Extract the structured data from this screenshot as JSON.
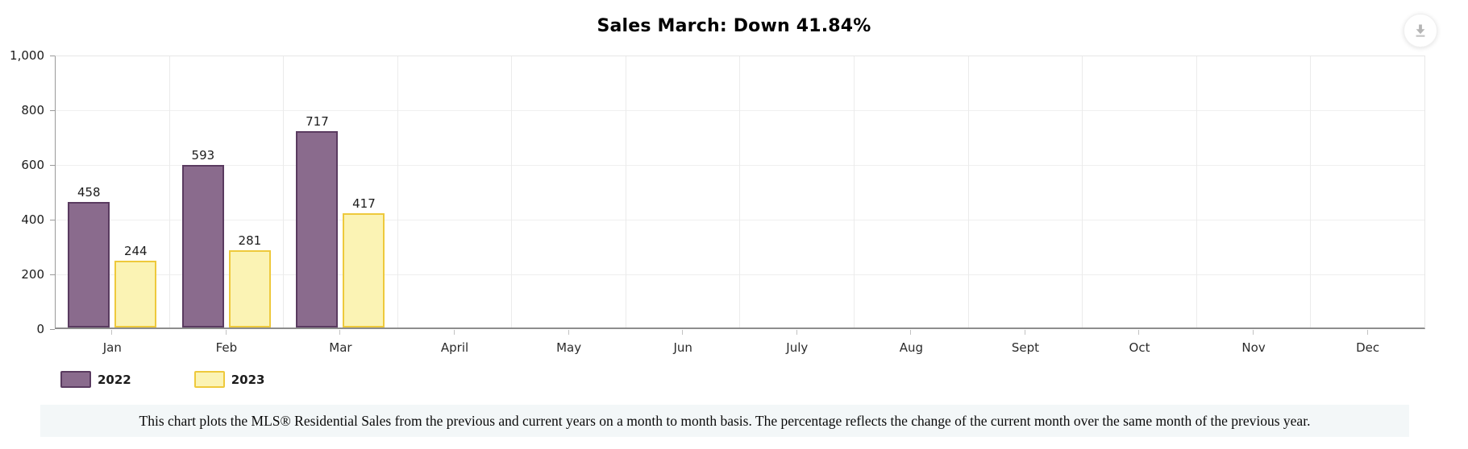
{
  "header": {
    "title": "Sales March: Down 41.84%"
  },
  "toolbar": {
    "download_icon": "download-icon"
  },
  "chart_data": {
    "type": "bar",
    "title": "Sales March: Down 41.84%",
    "categories": [
      "Jan",
      "Feb",
      "Mar",
      "April",
      "May",
      "Jun",
      "July",
      "Aug",
      "Sept",
      "Oct",
      "Nov",
      "Dec"
    ],
    "series": [
      {
        "name": "2022",
        "fill": "#8a6b8d",
        "border": "#5a3b60",
        "values": [
          458,
          593,
          717,
          null,
          null,
          null,
          null,
          null,
          null,
          null,
          null,
          null
        ]
      },
      {
        "name": "2023",
        "fill": "#fbf3b4",
        "border": "#eec93c",
        "values": [
          244,
          281,
          417,
          null,
          null,
          null,
          null,
          null,
          null,
          null,
          null,
          null
        ]
      }
    ],
    "ylim": [
      0,
      1000
    ],
    "y_tick_values": [
      1000,
      800,
      600,
      400,
      200,
      0
    ],
    "y_tick_labels": [
      "1,000",
      "800",
      "600",
      "400",
      "200",
      "0"
    ],
    "grid": "on",
    "legend_position": "bottom-left"
  },
  "legend": {
    "items": [
      "2022",
      "2023"
    ]
  },
  "footer": {
    "note": "This chart plots the MLS® Residential Sales from the previous and current years on a month to month basis. The percentage reflects the change of the current month over the same month of the previous year."
  },
  "colors": {
    "series_2022_fill": "#8a6b8d",
    "series_2022_border": "#5a3b60",
    "series_2023_fill": "#fbf3b4",
    "series_2023_border": "#eec93c",
    "gridline": "#ebebeb",
    "axis": "#9a9a9a",
    "footer_bg": "#f3f7f8"
  }
}
